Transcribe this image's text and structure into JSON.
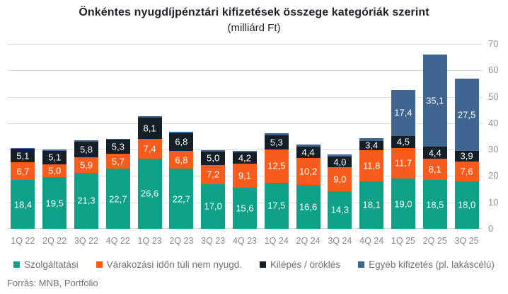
{
  "title": "Önkéntes nyugdíjpénztári kifizetések összege kategóriák szerint",
  "subtitle": "(milliárd Ft)",
  "source": "Forrás: MNB, Portfolio",
  "colors": {
    "szolgaltatasi": "#0da287",
    "varakozasi": "#f85c1c",
    "kilepes": "#161f28",
    "egyeb": "#3e6690",
    "gridline": "#dbdbdb",
    "axis_text": "#8c9094",
    "title_text": "#20222c",
    "legend_text": "#6e7276"
  },
  "chart_data": {
    "type": "bar",
    "stacked": true,
    "grid": true,
    "legend_position": "bottom",
    "axis_side": "right",
    "ylim": [
      0,
      70
    ],
    "yticks": [
      0,
      10,
      20,
      30,
      40,
      50,
      60,
      70
    ],
    "label_min_value": 3,
    "categories": [
      "1Q 22",
      "2Q 22",
      "3Q 22",
      "4Q 22",
      "1Q 23",
      "2Q 23",
      "3Q 23",
      "4Q 23",
      "1Q 24",
      "2Q 24",
      "3Q 24",
      "4Q 24",
      "1Q 25",
      "2Q 25",
      "3Q 25"
    ],
    "series": [
      {
        "name": "Szolgáltatási",
        "color": "#0da287",
        "values": [
          18.4,
          19.5,
          21.3,
          22.7,
          26.6,
          22.7,
          17.0,
          15.6,
          17.5,
          16.6,
          14.3,
          18.1,
          19.0,
          18.5,
          18.0
        ]
      },
      {
        "name": "Várakozási időn túli nem nyugd.",
        "color": "#f85c1c",
        "values": [
          6.7,
          5.0,
          5.9,
          5.7,
          7.4,
          6.8,
          7.2,
          9.1,
          12.5,
          10.2,
          9.0,
          11.8,
          11.7,
          8.1,
          7.6
        ]
      },
      {
        "name": "Kilépés / öröklés",
        "color": "#161f28",
        "values": [
          5.1,
          5.1,
          5.8,
          5.3,
          8.1,
          6.8,
          5.0,
          4.2,
          5.3,
          4.4,
          4.0,
          3.4,
          4.5,
          4.4,
          3.9
        ]
      },
      {
        "name": "Egyéb kifizetés (pl. lakáscélú)",
        "color": "#3e6690",
        "values": [
          0.5,
          0.4,
          0.5,
          0.5,
          0.5,
          0.5,
          0.5,
          0.6,
          0.8,
          0.8,
          0.8,
          1.0,
          17.4,
          35.1,
          27.5
        ]
      }
    ]
  }
}
